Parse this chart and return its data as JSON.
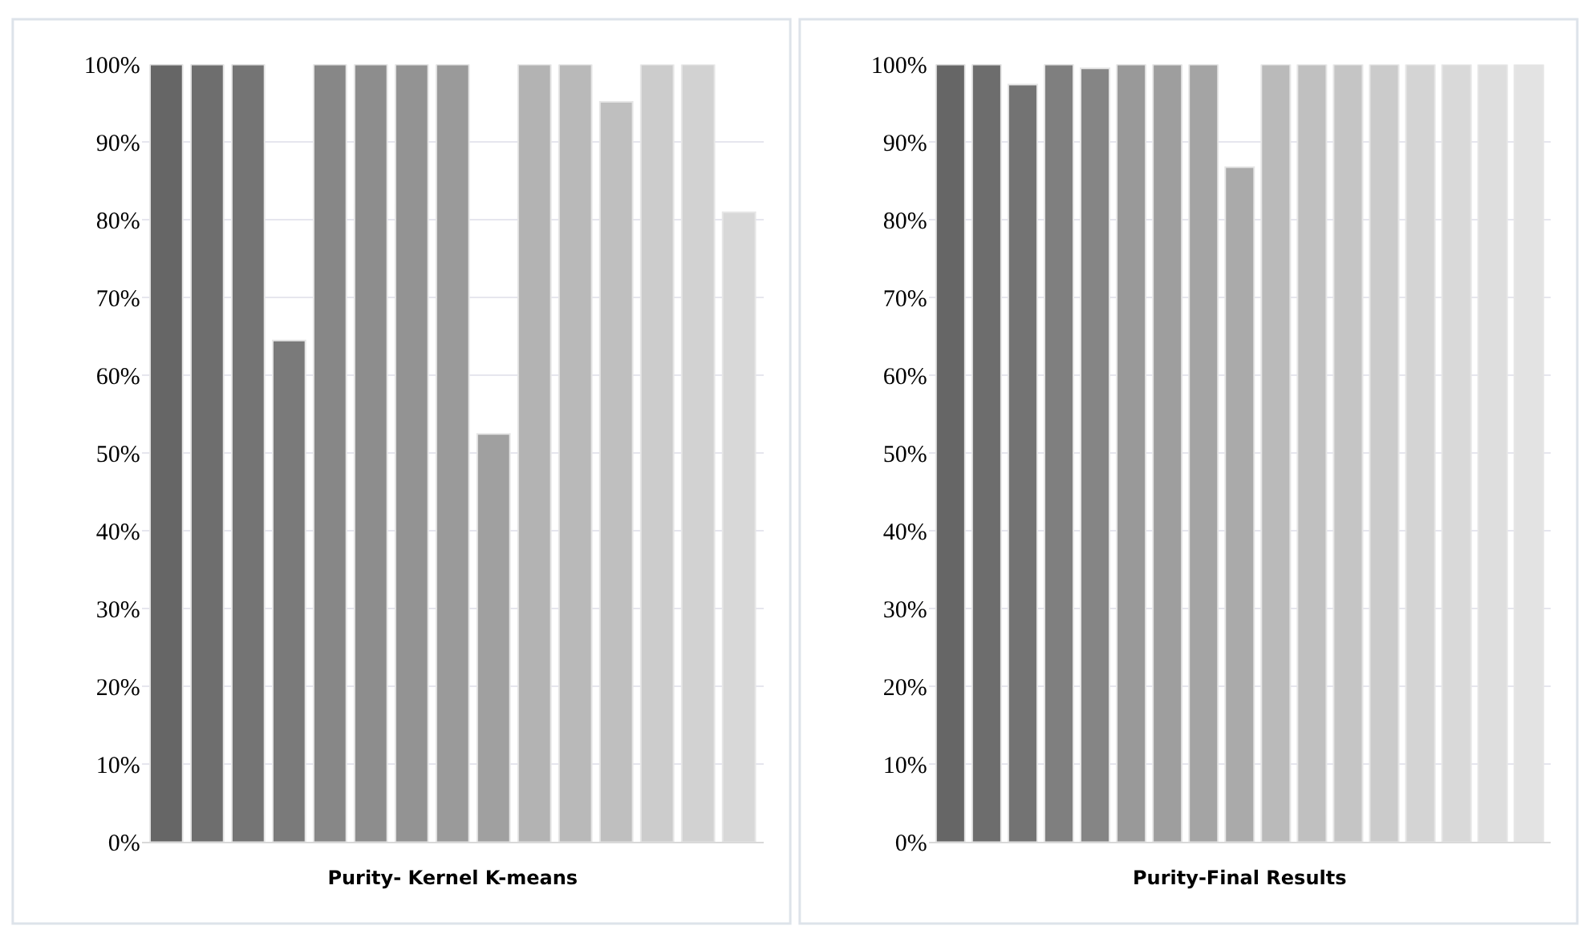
{
  "chart_data": [
    {
      "type": "bar",
      "xlabel": "Purity- Kernel K-means",
      "categories": [
        null,
        null,
        null,
        null,
        null,
        null,
        null,
        null,
        null,
        null,
        null,
        null,
        null,
        null,
        null
      ],
      "values": [
        100,
        100,
        100,
        64.5,
        100,
        100,
        100,
        100,
        52.5,
        100,
        100,
        95.2,
        100,
        100,
        81
      ],
      "colors": [
        "#666666",
        "#6e6e6e",
        "#747474",
        "#7a7a7a",
        "#878787",
        "#8d8d8d",
        "#939393",
        "#9a9a9a",
        "#a0a0a0",
        "#b3b3b3",
        "#b9b9b9",
        "#bfbfbf",
        "#cccccc",
        "#d2d2d2",
        "#d8d8d8"
      ],
      "ylim": [
        0,
        100
      ],
      "yticks": [
        {
          "value": 0,
          "label": "0%"
        },
        {
          "value": 10,
          "label": "10%"
        },
        {
          "value": 20,
          "label": "20%"
        },
        {
          "value": 30,
          "label": "30%"
        },
        {
          "value": 40,
          "label": "40%"
        },
        {
          "value": 50,
          "label": "50%"
        },
        {
          "value": 60,
          "label": "60%"
        },
        {
          "value": 70,
          "label": "70%"
        },
        {
          "value": 80,
          "label": "80%"
        },
        {
          "value": 90,
          "label": "90%"
        },
        {
          "value": 100,
          "label": "100%"
        }
      ],
      "grid": "y"
    },
    {
      "type": "bar",
      "xlabel": "Purity-Final Results",
      "categories": [
        null,
        null,
        null,
        null,
        null,
        null,
        null,
        null,
        null,
        null,
        null,
        null,
        null,
        null,
        null,
        null,
        null
      ],
      "values": [
        100,
        100,
        97.4,
        100,
        99.5,
        100,
        100,
        100,
        86.8,
        100,
        100,
        100,
        100,
        100,
        100,
        100,
        100
      ],
      "colors": [
        "#666666",
        "#6d6d6d",
        "#737373",
        "#7f7f7f",
        "#858585",
        "#999999",
        "#9e9e9e",
        "#a4a4a4",
        "#aaaaaa",
        "#bababa",
        "#c0c0c0",
        "#c5c5c5",
        "#cbcbcb",
        "#d4d4d4",
        "#d9d9d9",
        "#dedede",
        "#e3e3e3"
      ],
      "ylim": [
        0,
        100
      ],
      "yticks": [
        {
          "value": 0,
          "label": "0%"
        },
        {
          "value": 10,
          "label": "10%"
        },
        {
          "value": 20,
          "label": "20%"
        },
        {
          "value": 30,
          "label": "30%"
        },
        {
          "value": 40,
          "label": "40%"
        },
        {
          "value": 50,
          "label": "50%"
        },
        {
          "value": 60,
          "label": "60%"
        },
        {
          "value": 70,
          "label": "70%"
        },
        {
          "value": 80,
          "label": "80%"
        },
        {
          "value": 90,
          "label": "90%"
        },
        {
          "value": 100,
          "label": "100%"
        }
      ],
      "grid": "y"
    }
  ]
}
